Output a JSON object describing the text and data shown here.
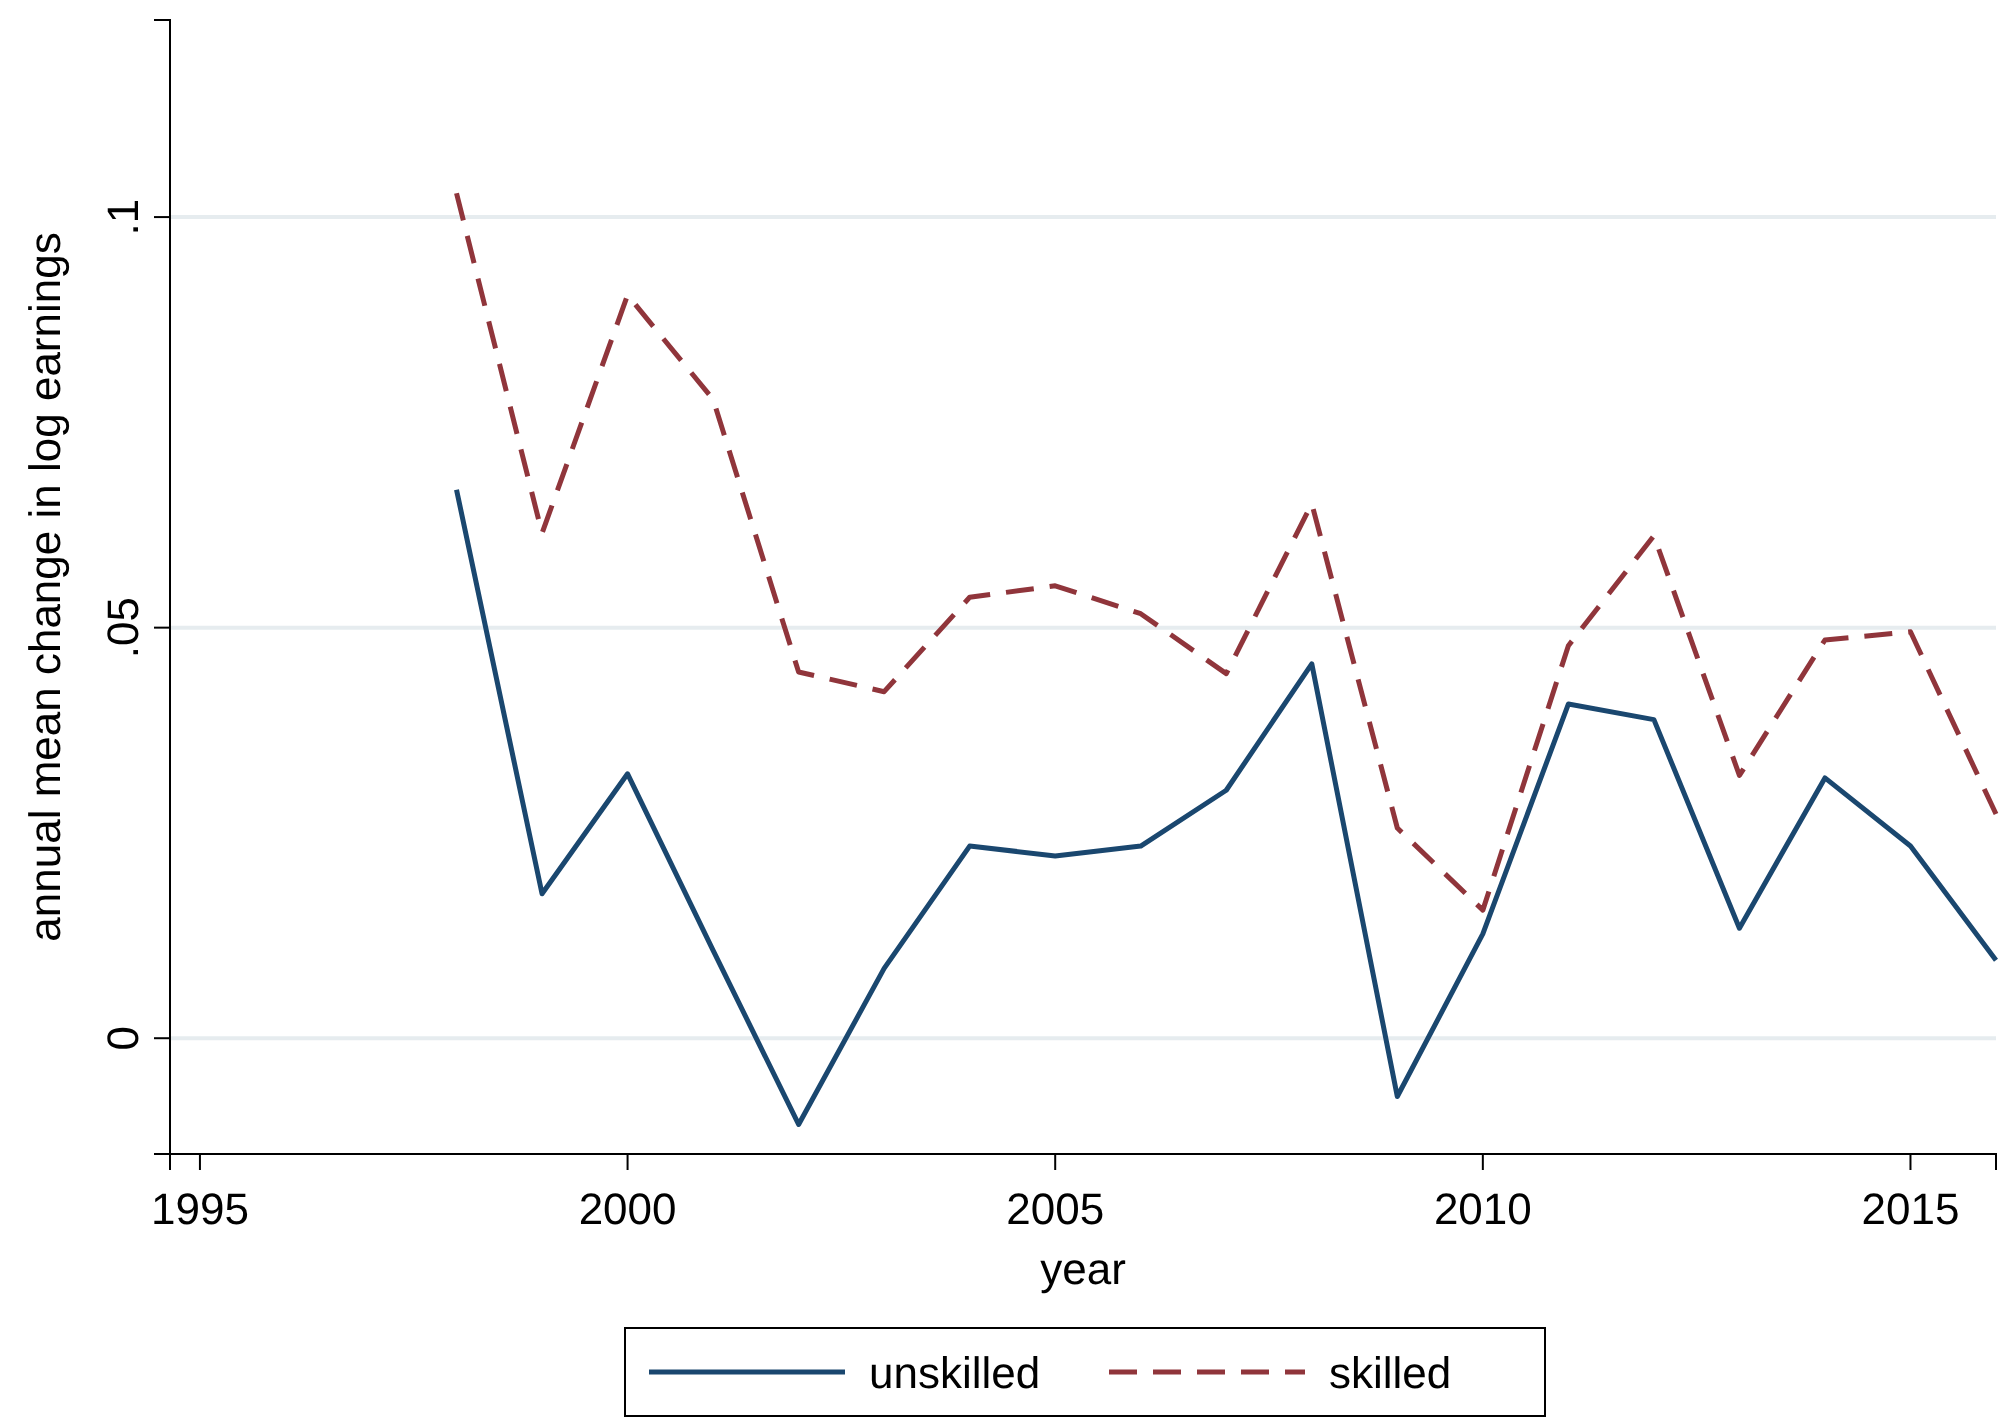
{
  "chart_data": {
    "type": "line",
    "xlabel": "year",
    "ylabel": "annual mean change in log earnings",
    "x": [
      1998,
      1999,
      2000,
      2001,
      2002,
      2003,
      2004,
      2005,
      2006,
      2007,
      2008,
      2009,
      2010,
      2011,
      2012,
      2013,
      2014,
      2015,
      2016
    ],
    "series": [
      {
        "name": "unskilled",
        "color": "#1a476f",
        "line_style": "solid",
        "values": [
          0.0668,
          0.0176,
          0.0322,
          0.0107,
          -0.0105,
          0.0085,
          0.0234,
          0.0222,
          0.0234,
          0.0302,
          0.0456,
          -0.0071,
          0.0127,
          0.0407,
          0.0388,
          0.0134,
          0.0317,
          0.0234,
          0.0095
        ]
      },
      {
        "name": "skilled",
        "color": "#90353b",
        "line_style": "dashed",
        "values": [
          0.1029,
          0.0615,
          0.0905,
          0.0778,
          0.0446,
          0.0422,
          0.0537,
          0.0551,
          0.0517,
          0.0444,
          0.0651,
          0.0256,
          0.0156,
          0.0478,
          0.0612,
          0.032,
          0.0485,
          0.0495,
          0.0273
        ]
      }
    ],
    "xlim": [
      1994.65,
      2016
    ],
    "xticks": [
      1995,
      2000,
      2005,
      2010,
      2015
    ],
    "ylim": [
      -0.0141,
      0.124
    ],
    "yticks": [
      {
        "value": 0,
        "label": "0"
      },
      {
        "value": 0.05,
        "label": ".05"
      },
      {
        "value": 0.1,
        "label": ".1"
      }
    ],
    "grid": "y",
    "legend": "bottom",
    "marker": "none"
  }
}
